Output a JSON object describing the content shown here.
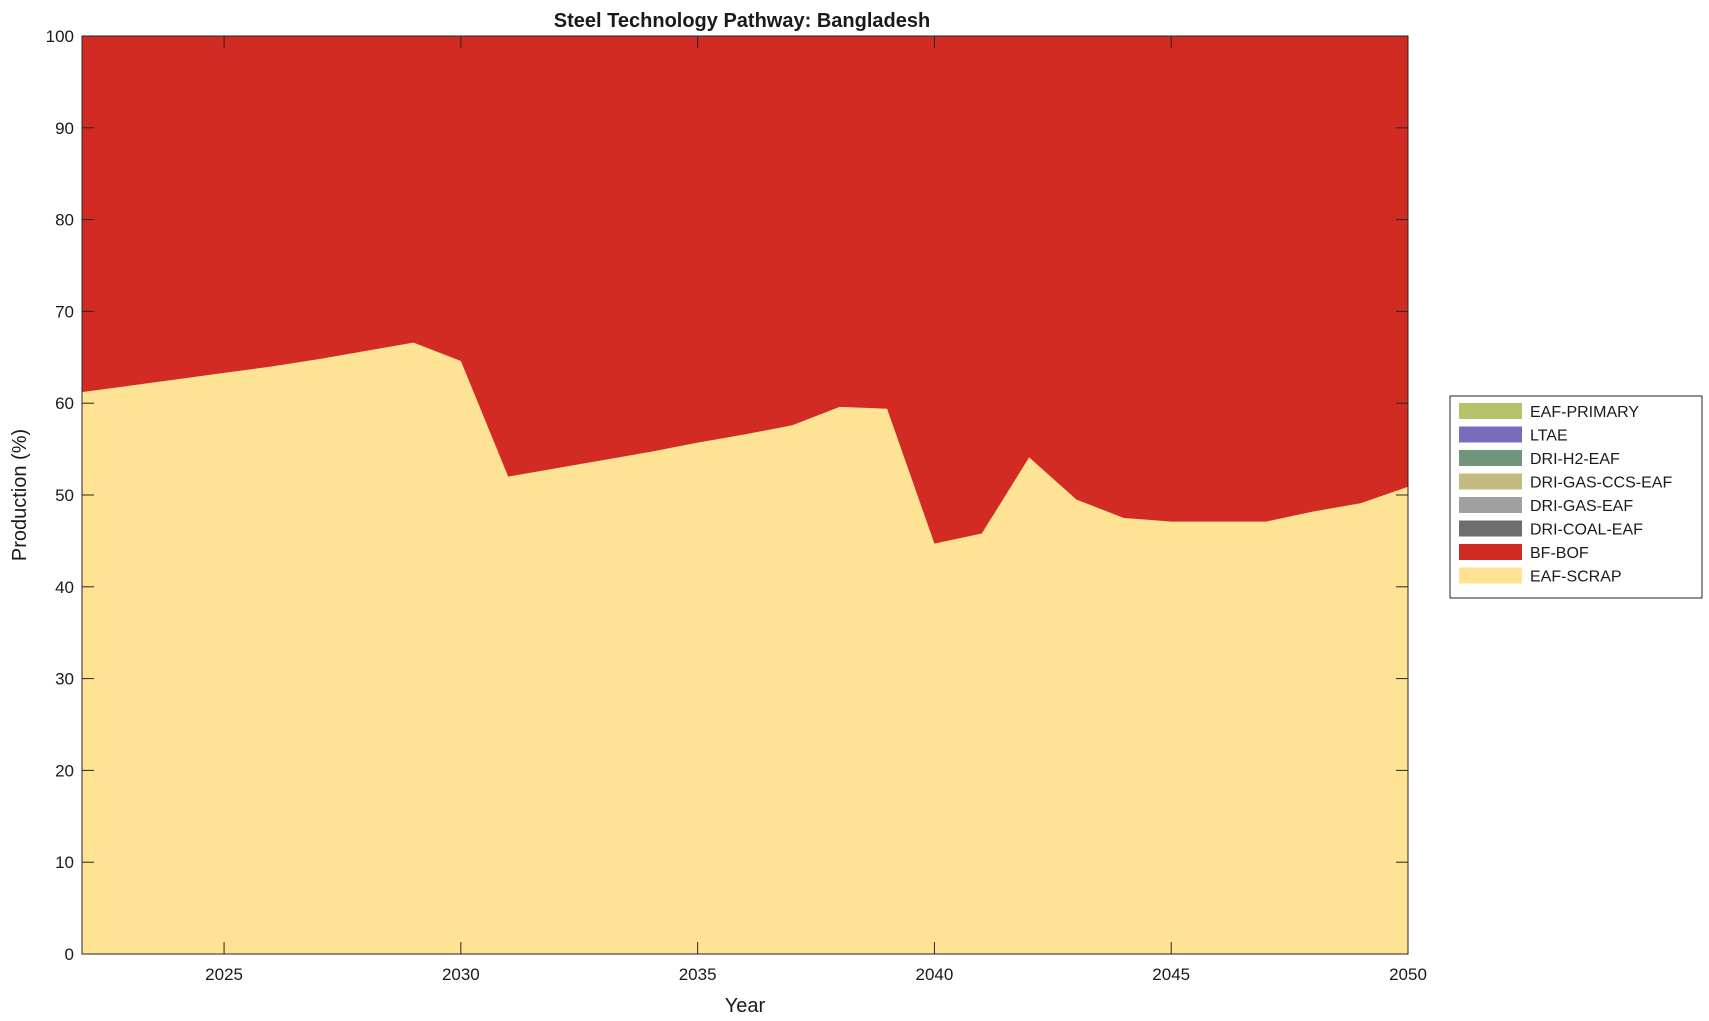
{
  "chart_data": {
    "type": "area",
    "stacked": true,
    "title": "Steel Technology Pathway: Bangladesh",
    "xlabel": "Year",
    "ylabel": "Production (%)",
    "xlim": [
      2022,
      2050
    ],
    "ylim": [
      0,
      100
    ],
    "xticks": [
      2025,
      2030,
      2035,
      2040,
      2045,
      2050
    ],
    "yticks": [
      0,
      10,
      20,
      30,
      40,
      50,
      60,
      70,
      80,
      90,
      100
    ],
    "grid": false,
    "legend_position": "right",
    "legend": [
      {
        "name": "EAF-PRIMARY",
        "color": "#b7c26a"
      },
      {
        "name": "LTAE",
        "color": "#7a6bbd"
      },
      {
        "name": "DRI-H2-EAF",
        "color": "#6f957a"
      },
      {
        "name": "DRI-GAS-CCS-EAF",
        "color": "#c3bb81"
      },
      {
        "name": "DRI-GAS-EAF",
        "color": "#a0a0a0"
      },
      {
        "name": "DRI-COAL-EAF",
        "color": "#6e6e6e"
      },
      {
        "name": "BF-BOF",
        "color": "#d22b24"
      },
      {
        "name": "EAF-SCRAP",
        "color": "#fde393"
      }
    ],
    "x": [
      2022,
      2023,
      2024,
      2025,
      2026,
      2027,
      2028,
      2029,
      2030,
      2031,
      2032,
      2033,
      2034,
      2035,
      2036,
      2037,
      2038,
      2039,
      2040,
      2041,
      2042,
      2043,
      2044,
      2045,
      2046,
      2047,
      2048,
      2049,
      2050
    ],
    "series": [
      {
        "name": "EAF-SCRAP",
        "color": "#fde393",
        "values": [
          61.2,
          61.9,
          62.6,
          63.3,
          64.0,
          64.8,
          65.7,
          66.6,
          64.6,
          52.0,
          52.9,
          53.8,
          54.7,
          55.7,
          56.6,
          57.6,
          59.6,
          59.4,
          44.7,
          45.8,
          54.1,
          49.5,
          47.5,
          47.1,
          47.1,
          47.1,
          48.2,
          49.1,
          50.9
        ]
      },
      {
        "name": "BF-BOF",
        "color": "#d22b24",
        "values": [
          38.8,
          38.1,
          37.4,
          36.7,
          36.0,
          35.2,
          34.3,
          33.4,
          35.4,
          48.0,
          47.1,
          46.2,
          45.3,
          44.3,
          43.4,
          42.4,
          40.4,
          40.6,
          55.3,
          54.2,
          45.9,
          50.5,
          52.5,
          52.9,
          52.9,
          52.9,
          51.8,
          50.9,
          49.1
        ]
      },
      {
        "name": "DRI-COAL-EAF",
        "color": "#6e6e6e",
        "values": [
          0,
          0,
          0,
          0,
          0,
          0,
          0,
          0,
          0,
          0,
          0,
          0,
          0,
          0,
          0,
          0,
          0,
          0,
          0,
          0,
          0,
          0,
          0,
          0,
          0,
          0,
          0,
          0,
          0
        ]
      },
      {
        "name": "DRI-GAS-EAF",
        "color": "#a0a0a0",
        "values": [
          0,
          0,
          0,
          0,
          0,
          0,
          0,
          0,
          0,
          0,
          0,
          0,
          0,
          0,
          0,
          0,
          0,
          0,
          0,
          0,
          0,
          0,
          0,
          0,
          0,
          0,
          0,
          0,
          0
        ]
      },
      {
        "name": "DRI-GAS-CCS-EAF",
        "color": "#c3bb81",
        "values": [
          0,
          0,
          0,
          0,
          0,
          0,
          0,
          0,
          0,
          0,
          0,
          0,
          0,
          0,
          0,
          0,
          0,
          0,
          0,
          0,
          0,
          0,
          0,
          0,
          0,
          0,
          0,
          0,
          0
        ]
      },
      {
        "name": "DRI-H2-EAF",
        "color": "#6f957a",
        "values": [
          0,
          0,
          0,
          0,
          0,
          0,
          0,
          0,
          0,
          0,
          0,
          0,
          0,
          0,
          0,
          0,
          0,
          0,
          0,
          0,
          0,
          0,
          0,
          0,
          0,
          0,
          0,
          0,
          0
        ]
      },
      {
        "name": "LTAE",
        "color": "#7a6bbd",
        "values": [
          0,
          0,
          0,
          0,
          0,
          0,
          0,
          0,
          0,
          0,
          0,
          0,
          0,
          0,
          0,
          0,
          0,
          0,
          0,
          0,
          0,
          0,
          0,
          0,
          0,
          0,
          0,
          0,
          0
        ]
      },
      {
        "name": "EAF-PRIMARY",
        "color": "#b7c26a",
        "values": [
          0,
          0,
          0,
          0,
          0,
          0,
          0,
          0,
          0,
          0,
          0,
          0,
          0,
          0,
          0,
          0,
          0,
          0,
          0,
          0,
          0,
          0,
          0,
          0,
          0,
          0,
          0,
          0,
          0
        ]
      }
    ]
  }
}
